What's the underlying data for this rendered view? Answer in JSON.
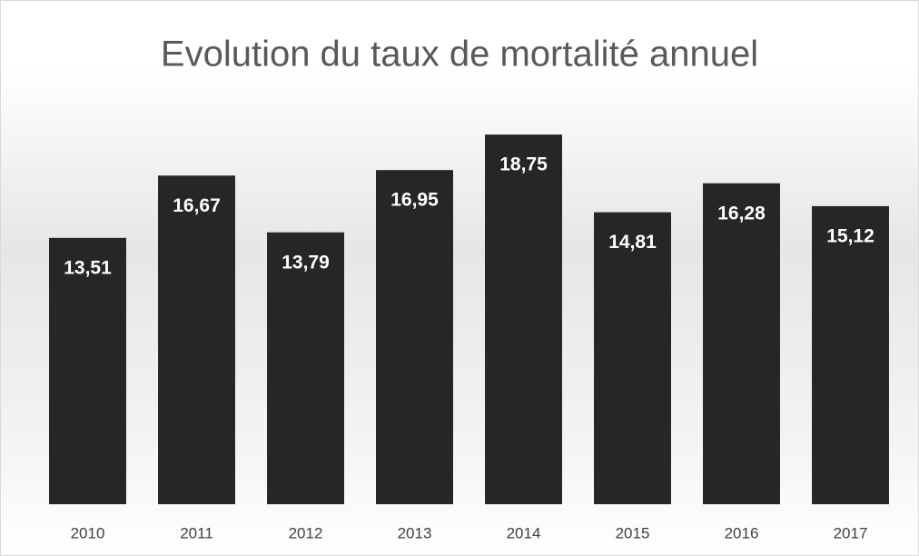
{
  "chart_data": {
    "type": "bar",
    "title": "Evolution du taux de mortalité annuel",
    "categories": [
      "2010",
      "2011",
      "2012",
      "2013",
      "2014",
      "2015",
      "2016",
      "2017"
    ],
    "values": [
      13.51,
      16.67,
      13.79,
      16.95,
      18.75,
      14.81,
      16.28,
      15.12
    ],
    "value_labels": [
      "13,51",
      "16,67",
      "13,79",
      "16,95",
      "18,75",
      "14,81",
      "16,28",
      "15,12"
    ],
    "color": "#262626",
    "ylim": [
      0,
      20
    ],
    "grid": false
  }
}
